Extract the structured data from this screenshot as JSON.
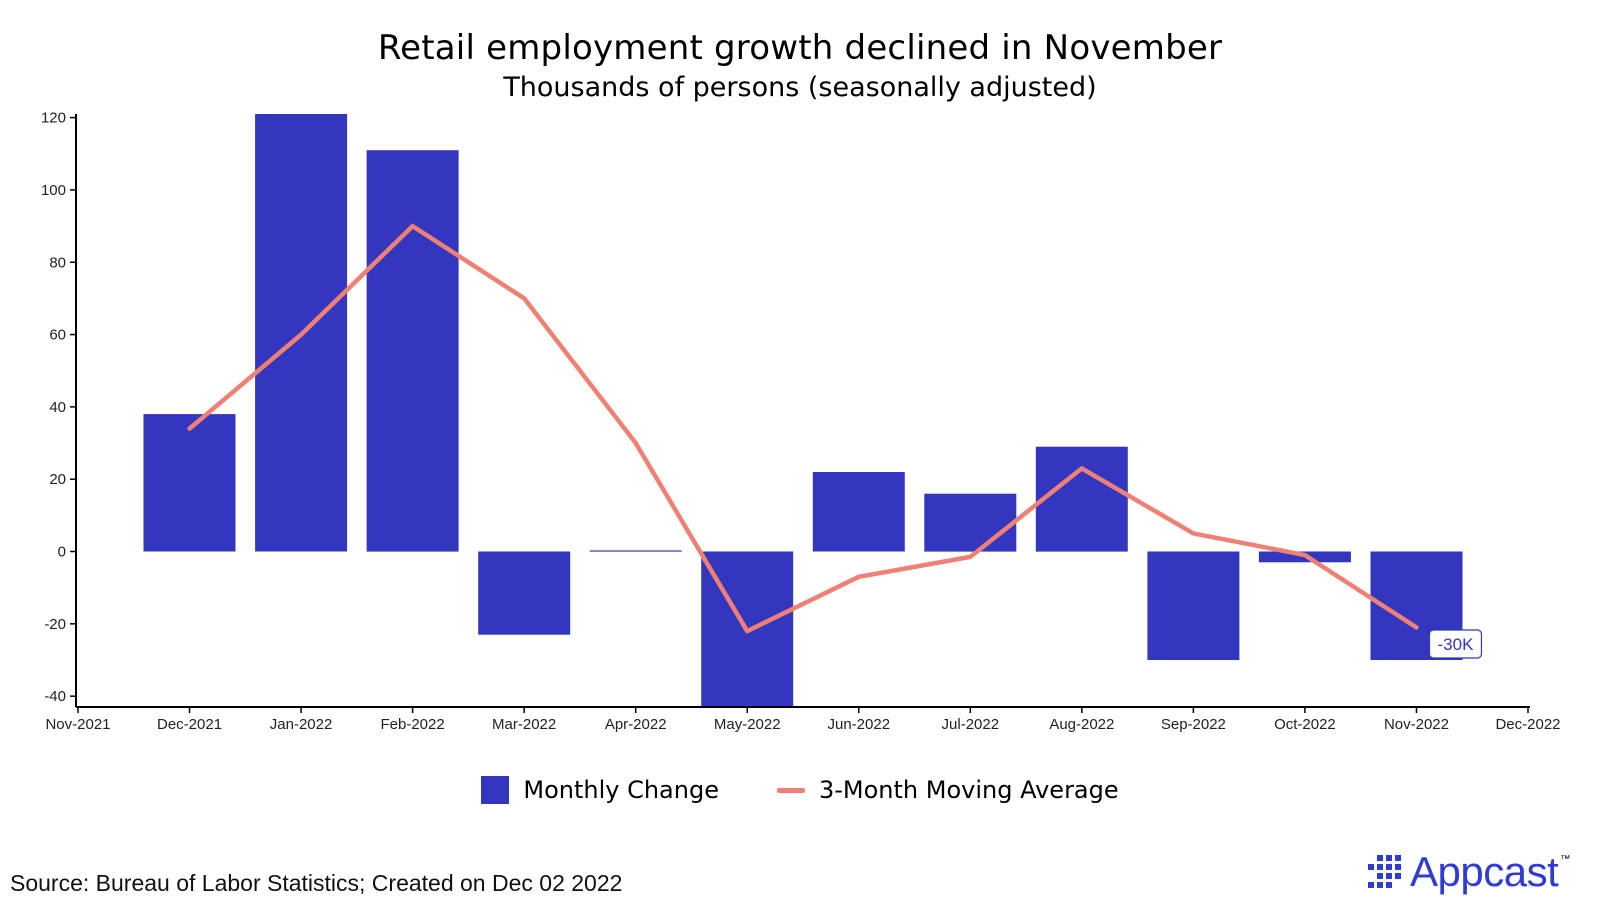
{
  "colors": {
    "bar": "#3336BE",
    "line": "#F08074",
    "axis": "#000000",
    "brand": "#2F3BD6"
  },
  "chart_data": {
    "type": "bar",
    "title": "Retail employment growth declined in November",
    "subtitle": "Thousands of persons (seasonally adjusted)",
    "x_tick_labels": [
      "Nov-2021",
      "Dec-2021",
      "Jan-2022",
      "Feb-2022",
      "Mar-2022",
      "Apr-2022",
      "May-2022",
      "Jun-2022",
      "Jul-2022",
      "Aug-2022",
      "Sep-2022",
      "Oct-2022",
      "Nov-2022",
      "Dec-2022"
    ],
    "categories": [
      "Dec-2021",
      "Jan-2022",
      "Feb-2022",
      "Mar-2022",
      "Apr-2022",
      "May-2022",
      "Jun-2022",
      "Jul-2022",
      "Aug-2022",
      "Sep-2022",
      "Oct-2022",
      "Nov-2022"
    ],
    "ylim": [
      -43,
      121
    ],
    "y_ticks": [
      -40,
      -20,
      0,
      20,
      40,
      60,
      80,
      100,
      120
    ],
    "series": [
      {
        "name": "Monthly Change",
        "kind": "bar",
        "values": [
          38,
          121,
          111,
          -23,
          0.3,
          -44,
          22,
          16,
          29,
          -30,
          -3,
          -30
        ]
      },
      {
        "name": "3-Month Moving Average",
        "kind": "line",
        "values": [
          34,
          60,
          90,
          70,
          30,
          -22,
          -7,
          -1.5,
          23,
          5,
          -1,
          -21
        ]
      }
    ],
    "annotation": {
      "category": "Nov-2022",
      "text": "-30K"
    },
    "legend_position": "bottom",
    "grid": false
  },
  "source": "Source: Bureau of Labor Statistics; Created on Dec 02 2022",
  "logo": {
    "name": "Appcast",
    "icon": "appcast-dots-icon",
    "mark": "™"
  }
}
